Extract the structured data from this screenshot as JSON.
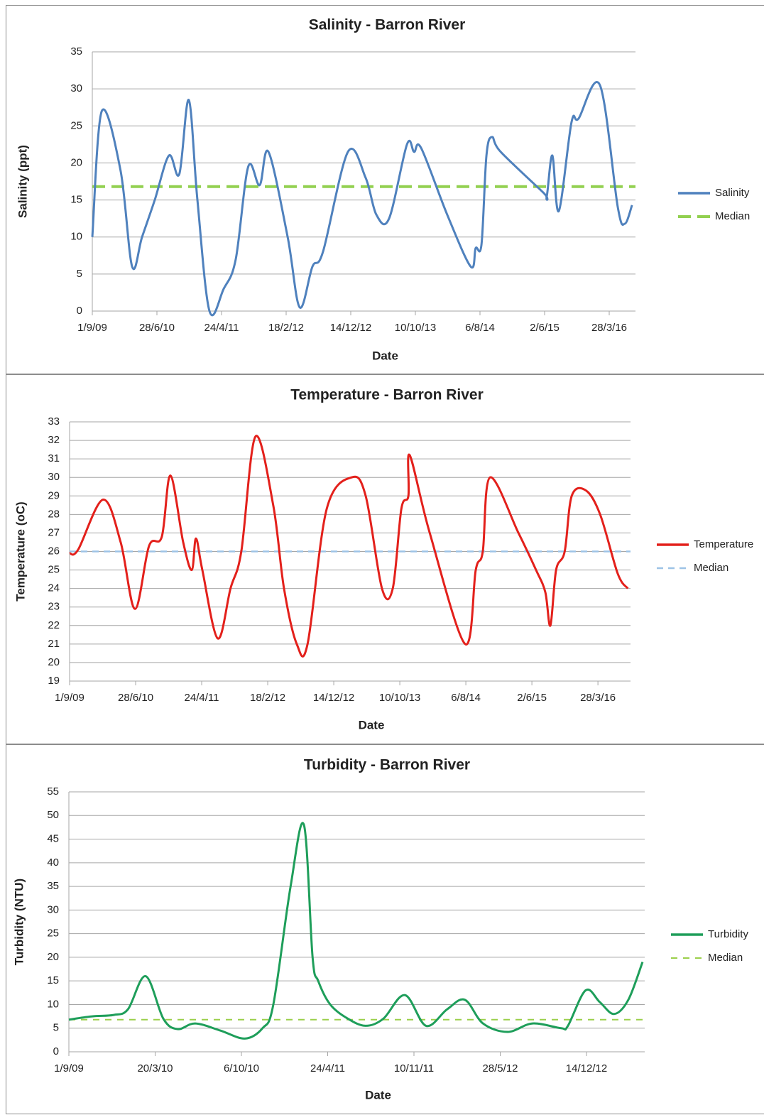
{
  "chart_data": [
    {
      "type": "line",
      "title": "Salinity - Barron River",
      "x_label": "Date",
      "y_label": "Salinity (ppt)",
      "x": [
        "1/9/09",
        "15/10/09",
        "10/1/10",
        "5/3/10",
        "20/4/10",
        "18/6/10",
        "23/8/10",
        "10/10/10",
        "23/11/10",
        "2/1/11",
        "27/2/11",
        "4/5/11",
        "29/6/11",
        "26/8/11",
        "18/10/11",
        "28/11/11",
        "25/2/12",
        "21/4/12",
        "19/6/12",
        "7/8/12",
        "1/12/12",
        "21/2/13",
        "12/4/13",
        "10/6/13",
        "1/9/13",
        "4/10/13",
        "6/11/13",
        "7/3/14",
        "24/6/14",
        "17/7/14",
        "13/8/14",
        "5/9/14",
        "1/10/14",
        "10/11/14",
        "27/5/15",
        "12/6/15",
        "8/7/15",
        "7/8/15",
        "5/10/15",
        "7/11/15",
        "14/2/16",
        "7/5/16",
        "9/6/16",
        "12/7/16"
      ],
      "series": [
        {
          "name": "Salinity",
          "color": "#4f81bd",
          "values": [
            10,
            27,
            19,
            6,
            10,
            15,
            21,
            18.5,
            28.5,
            15,
            0,
            3,
            7,
            19.5,
            17,
            21.5,
            10,
            0.5,
            6,
            8,
            21.5,
            18,
            13,
            12.5,
            22.5,
            21.5,
            22,
            13,
            6,
            8.5,
            9,
            21,
            23.5,
            21.5,
            16,
            15.5,
            21,
            13.5,
            25.5,
            26,
            30.5,
            14,
            11.8,
            14.3
          ]
        }
      ],
      "reference_lines": [
        {
          "name": "Median",
          "value": 16.8,
          "color": "#92d050",
          "dash": "18 9",
          "width": 4
        }
      ],
      "xlim": [
        "1/9/09",
        "28/7/16"
      ],
      "xticks": [
        "1/9/09",
        "28/6/10",
        "24/4/11",
        "18/2/12",
        "14/12/12",
        "10/10/13",
        "6/8/14",
        "2/6/15",
        "28/3/16"
      ],
      "ylim": [
        0,
        35
      ],
      "yticks": [
        0,
        5,
        10,
        15,
        20,
        25,
        30,
        35
      ],
      "grid": true,
      "legend": "right"
    },
    {
      "type": "line",
      "title": "Temperature - Barron River",
      "x_label": "Date",
      "y_label": "Temperature (oC)",
      "x": [
        "1/9/09",
        "10/10/09",
        "31/1/10",
        "21/4/10",
        "25/6/10",
        "28/8/10",
        "25/10/10",
        "3/12/10",
        "30/1/11",
        "10/3/11",
        "29/3/11",
        "27/4/11",
        "6/7/11",
        "2/9/11",
        "21/10/11",
        "24/12/11",
        "14/3/12",
        "2/5/12",
        "29/6/12",
        "17/8/12",
        "12/11/12",
        "5/3/13",
        "8/5/13",
        "21/7/13",
        "8/9/13",
        "17/10/13",
        "18/11/13",
        "24/11/13",
        "23/2/14",
        "3/8/14",
        "20/9/14",
        "22/10/14",
        "24/11/14",
        "2/4/15",
        "21/6/15",
        "2/8/15",
        "25/8/15",
        "20/9/15",
        "29/10/15",
        "30/11/15",
        "2/2/16",
        "7/4/16",
        "26/6/16",
        "11/8/16"
      ],
      "series": [
        {
          "name": "Temperature",
          "color": "#e3201b",
          "values": [
            25.9,
            26.1,
            28.8,
            26.5,
            22.9,
            26.3,
            26.8,
            30.1,
            26.5,
            25,
            26.7,
            25,
            21.3,
            24,
            26,
            32.2,
            28.5,
            24,
            21,
            21,
            28.3,
            30,
            29,
            24,
            24,
            28.3,
            29,
            31.2,
            27,
            21,
            25,
            26,
            30,
            27,
            25,
            23.8,
            22,
            25,
            26,
            29,
            29.3,
            28,
            24.8,
            24
          ]
        }
      ],
      "reference_lines": [
        {
          "name": "Median",
          "value": 26,
          "color": "#9dc3e6",
          "dash": "9 7",
          "width": 2.5
        }
      ],
      "xlim": [
        "1/9/09",
        "23/8/16"
      ],
      "xticks": [
        "1/9/09",
        "28/6/10",
        "24/4/11",
        "18/2/12",
        "14/12/12",
        "10/10/13",
        "6/8/14",
        "2/6/15",
        "28/3/16"
      ],
      "ylim": [
        19,
        33
      ],
      "yticks": [
        19,
        20,
        21,
        22,
        23,
        24,
        25,
        26,
        27,
        28,
        29,
        30,
        31,
        32,
        33
      ],
      "grid": true,
      "legend": "right"
    },
    {
      "type": "line",
      "title": "Turbidity - Barron River",
      "x_label": "Date",
      "y_label": "Turbidity (NTU)",
      "x": [
        "1/9/09",
        "25/10/09",
        "14/12/09",
        "16/1/10",
        "26/2/10",
        "8/4/10",
        "11/5/10",
        "21/6/10",
        "18/8/10",
        "14/10/10",
        "24/11/10",
        "19/12/10",
        "28/1/11",
        "28/2/11",
        "20/3/11",
        "2/4/11",
        "30/4/11",
        "10/6/11",
        "21/7/11",
        "31/8/11",
        "20/10/11",
        "8/12/11",
        "26/1/12",
        "7/3/12",
        "18/4/12",
        "14/6/12",
        "11/8/12",
        "16/10/12",
        "1/11/12",
        "12/12/12",
        "14/1/13",
        "16/2/13",
        "21/3/13",
        "23/4/13"
      ],
      "series": [
        {
          "name": "Turbidity",
          "color": "#1e9e5a",
          "values": [
            6.8,
            7.5,
            7.8,
            9,
            16,
            7,
            4.8,
            6,
            4.5,
            2.8,
            5,
            10,
            35,
            48,
            20,
            15,
            10,
            7,
            5.5,
            7,
            12,
            5.5,
            9,
            11,
            6,
            4.2,
            6,
            5,
            5.5,
            13,
            10.5,
            8,
            11,
            19
          ]
        }
      ],
      "reference_lines": [
        {
          "name": "Median",
          "value": 6.8,
          "color": "#9bcf4a",
          "dash": "9 8",
          "width": 2
        }
      ],
      "xlim": [
        "1/9/09",
        "28/4/13"
      ],
      "xticks": [
        "1/9/09",
        "20/3/10",
        "6/10/10",
        "24/4/11",
        "10/11/11",
        "28/5/12",
        "14/12/12"
      ],
      "ylim": [
        0,
        55
      ],
      "yticks": [
        0,
        5,
        10,
        15,
        20,
        25,
        30,
        35,
        40,
        45,
        50,
        55
      ],
      "grid": true,
      "legend": "right"
    }
  ]
}
